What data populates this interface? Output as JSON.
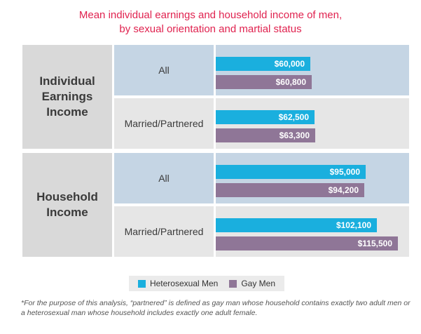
{
  "title": {
    "line1": "Mean individual earnings and household income of men,",
    "line2": "by sexual orientation and martial status"
  },
  "colors": {
    "title": "#e0224f",
    "heterosexual": "#1aafde",
    "gay": "#8f7697",
    "band_blue": "#c5d5e4",
    "band_grey": "#e6e6e6",
    "group_bg": "#d9d9d9"
  },
  "chart_data": {
    "type": "bar",
    "orientation": "horizontal",
    "xlim": [
      0,
      120000
    ],
    "series": [
      {
        "name": "Heterosexual Men",
        "color": "#1aafde"
      },
      {
        "name": "Gay Men",
        "color": "#8f7697"
      }
    ],
    "groups": [
      {
        "label_lines": [
          "Individual",
          "Earnings",
          "Income"
        ],
        "subgroups": [
          {
            "label": "All",
            "values": [
              60000,
              60800
            ],
            "value_labels": [
              "$60,000",
              "$60,800"
            ]
          },
          {
            "label": "Married/Partnered",
            "values": [
              62500,
              63300
            ],
            "value_labels": [
              "$62,500",
              "$63,300"
            ]
          }
        ]
      },
      {
        "label_lines": [
          "Household",
          "Income"
        ],
        "subgroups": [
          {
            "label": "All",
            "values": [
              95000,
              94200
            ],
            "value_labels": [
              "$95,000",
              "$94,200"
            ]
          },
          {
            "label": "Married/Partnered",
            "values": [
              102100,
              115500
            ],
            "value_labels": [
              "$102,100",
              "$115,500"
            ]
          }
        ]
      }
    ]
  },
  "legend": {
    "heterosexual": "Heterosexual Men",
    "gay": "Gay Men"
  },
  "footnote": "*For the purpose of this analysis, “partnered” is defined as gay man whose household contains exactly two adult men or a heterosexual man whose household includes exactly one adult female."
}
